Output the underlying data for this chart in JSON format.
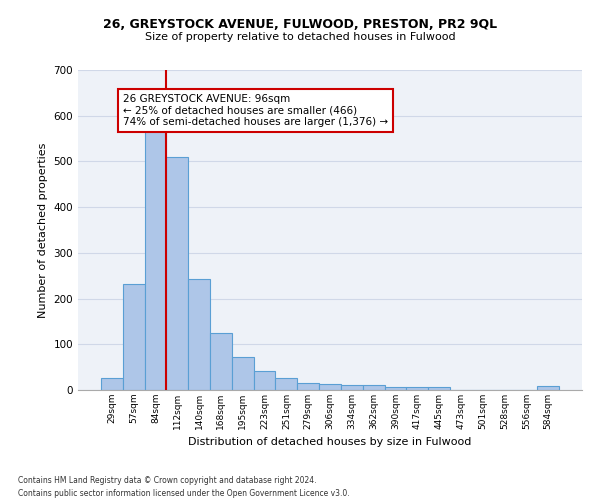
{
  "title1": "26, GREYSTOCK AVENUE, FULWOOD, PRESTON, PR2 9QL",
  "title2": "Size of property relative to detached houses in Fulwood",
  "xlabel": "Distribution of detached houses by size in Fulwood",
  "ylabel": "Number of detached properties",
  "categories": [
    "29sqm",
    "57sqm",
    "84sqm",
    "112sqm",
    "140sqm",
    "168sqm",
    "195sqm",
    "223sqm",
    "251sqm",
    "279sqm",
    "306sqm",
    "334sqm",
    "362sqm",
    "390sqm",
    "417sqm",
    "445sqm",
    "473sqm",
    "501sqm",
    "528sqm",
    "556sqm",
    "584sqm"
  ],
  "values": [
    27,
    232,
    575,
    510,
    242,
    125,
    72,
    42,
    27,
    15,
    13,
    10,
    10,
    6,
    6,
    6,
    0,
    0,
    0,
    0,
    8
  ],
  "bar_color": "#aec6e8",
  "bar_edge_color": "#5a9fd4",
  "grid_color": "#d0d8e8",
  "bg_color": "#eef2f8",
  "annotation_text": "26 GREYSTOCK AVENUE: 96sqm\n← 25% of detached houses are smaller (466)\n74% of semi-detached houses are larger (1,376) →",
  "vline_color": "#cc0000",
  "box_color": "#cc0000",
  "footnote1": "Contains HM Land Registry data © Crown copyright and database right 2024.",
  "footnote2": "Contains public sector information licensed under the Open Government Licence v3.0.",
  "ylim": [
    0,
    700
  ],
  "yticks": [
    0,
    100,
    200,
    300,
    400,
    500,
    600,
    700
  ]
}
